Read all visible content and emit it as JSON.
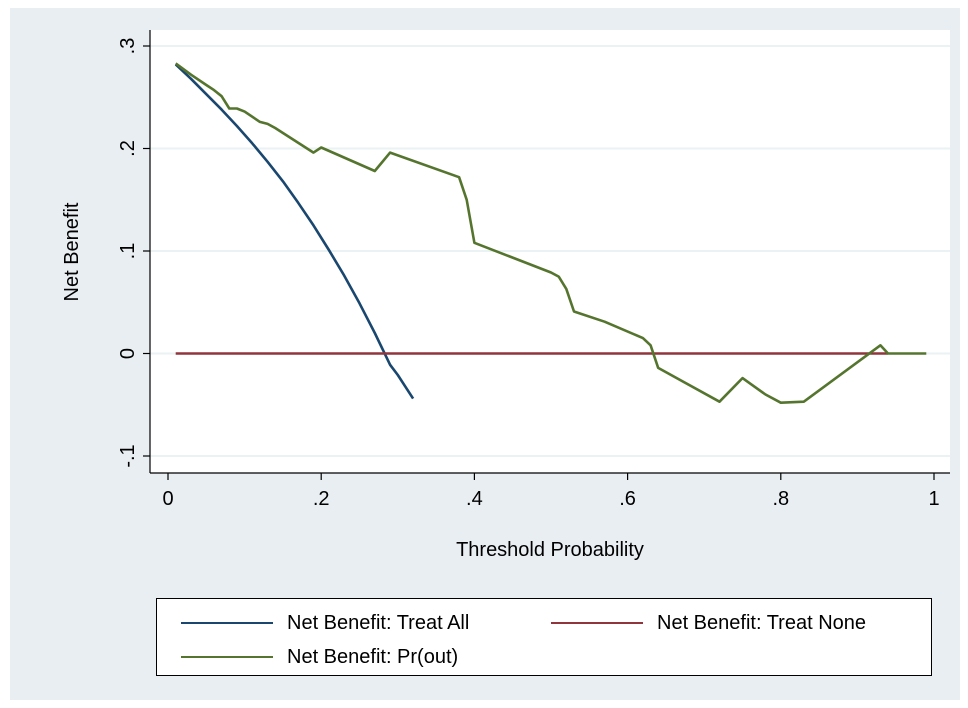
{
  "chart_data": {
    "type": "line",
    "title": "",
    "xlabel": "Threshold Probability",
    "ylabel": "Net Benefit",
    "xlim": [
      0,
      1
    ],
    "ylim": [
      -0.1,
      0.3
    ],
    "x_ticks": [
      {
        "value": 0,
        "label": "0"
      },
      {
        "value": 0.2,
        "label": ".2"
      },
      {
        "value": 0.4,
        "label": ".4"
      },
      {
        "value": 0.6,
        "label": ".6"
      },
      {
        "value": 0.8,
        "label": ".8"
      },
      {
        "value": 1,
        "label": "1"
      }
    ],
    "y_ticks": [
      {
        "value": -0.1,
        "label": "-.1"
      },
      {
        "value": 0,
        "label": "0"
      },
      {
        "value": 0.1,
        "label": ".1"
      },
      {
        "value": 0.2,
        "label": ".2"
      },
      {
        "value": 0.3,
        "label": ".3"
      }
    ],
    "grid": "horizontal",
    "legend_position": "bottom",
    "series": [
      {
        "name": "Net Benefit: Treat All",
        "color": "#1a476f",
        "x": [
          0.01,
          0.03,
          0.05,
          0.07,
          0.09,
          0.11,
          0.13,
          0.15,
          0.17,
          0.19,
          0.21,
          0.23,
          0.25,
          0.27,
          0.29,
          0.3,
          0.32
        ],
        "y": [
          0.282,
          0.268,
          0.253,
          0.238,
          0.222,
          0.205,
          0.187,
          0.168,
          0.147,
          0.125,
          0.101,
          0.076,
          0.049,
          0.02,
          -0.011,
          -0.021,
          -0.044
        ]
      },
      {
        "name": "Net Benefit: Treat None",
        "color": "#90353b",
        "x": [
          0.01,
          0.94
        ],
        "y": [
          0,
          0
        ]
      },
      {
        "name": "Net Benefit: Pr(out)",
        "color": "#55752f",
        "x": [
          0.01,
          0.03,
          0.05,
          0.06,
          0.07,
          0.08,
          0.09,
          0.1,
          0.12,
          0.13,
          0.14,
          0.19,
          0.2,
          0.27,
          0.29,
          0.38,
          0.39,
          0.4,
          0.5,
          0.51,
          0.52,
          0.53,
          0.57,
          0.62,
          0.63,
          0.64,
          0.72,
          0.75,
          0.78,
          0.8,
          0.83,
          0.93,
          0.94,
          0.99
        ],
        "y": [
          0.283,
          0.272,
          0.262,
          0.257,
          0.251,
          0.239,
          0.239,
          0.236,
          0.226,
          0.224,
          0.22,
          0.196,
          0.201,
          0.178,
          0.196,
          0.172,
          0.15,
          0.108,
          0.079,
          0.075,
          0.063,
          0.041,
          0.031,
          0.015,
          0.008,
          -0.014,
          -0.047,
          -0.024,
          -0.04,
          -0.048,
          -0.047,
          0.008,
          0.0,
          0.0
        ]
      }
    ]
  }
}
